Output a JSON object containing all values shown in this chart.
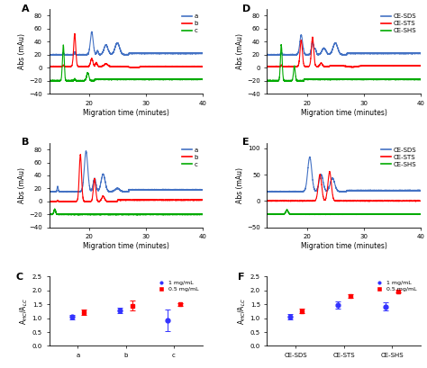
{
  "panel_A": {
    "label": "A",
    "legend": [
      "a",
      "b",
      "c"
    ],
    "colors": [
      "#4472C4",
      "#FF0000",
      "#00AA00"
    ],
    "xlabel": "Migration time (minutes)",
    "ylabel": "Abs (mAu)",
    "xlim": [
      13,
      40
    ],
    "ylim": [
      -40,
      90
    ],
    "yticks": [
      -40,
      -20,
      0,
      20,
      40,
      60,
      80
    ],
    "xticks": [
      20,
      30,
      40
    ]
  },
  "panel_B": {
    "label": "B",
    "legend": [
      "a",
      "b",
      "c"
    ],
    "colors": [
      "#4472C4",
      "#FF0000",
      "#00AA00"
    ],
    "xlabel": "Migration time (minutes)",
    "ylabel": "Abs (mAu)",
    "xlim": [
      13,
      40
    ],
    "ylim": [
      -40,
      90
    ],
    "yticks": [
      -40,
      -20,
      0,
      20,
      40,
      60,
      80
    ],
    "xticks": [
      20,
      30,
      40
    ]
  },
  "panel_D": {
    "label": "D",
    "legend": [
      "CE-SDS",
      "CE-STS",
      "CE-SHS"
    ],
    "colors": [
      "#4472C4",
      "#FF0000",
      "#00AA00"
    ],
    "xlabel": "Migration time (minutes)",
    "ylabel": "Abs (mAu)",
    "xlim": [
      13,
      40
    ],
    "ylim": [
      -40,
      90
    ],
    "yticks": [
      -40,
      -20,
      0,
      20,
      40,
      60,
      80
    ],
    "xticks": [
      20,
      30,
      40
    ]
  },
  "panel_E": {
    "label": "E",
    "legend": [
      "CE-SDS",
      "CE-STS",
      "CE-SHS"
    ],
    "colors": [
      "#4472C4",
      "#FF0000",
      "#00AA00"
    ],
    "xlabel": "Migration time (minutes)",
    "ylabel": "Abs (mAu)",
    "xlim": [
      13,
      40
    ],
    "ylim": [
      -50,
      110
    ],
    "yticks": [
      -50,
      0,
      50,
      100
    ],
    "xticks": [
      20,
      30,
      40
    ]
  },
  "panel_C": {
    "label": "C",
    "categories": [
      "a",
      "b",
      "c"
    ],
    "blue_mean": [
      1.05,
      1.28,
      0.93
    ],
    "blue_err": [
      0.08,
      0.1,
      0.38
    ],
    "red_mean": [
      1.22,
      1.45,
      1.5
    ],
    "red_err": [
      0.1,
      0.18,
      0.05
    ],
    "ylabel": "A$_{HC}$/A$_{LC}$",
    "ylim": [
      0.0,
      2.5
    ],
    "yticks": [
      0.0,
      0.5,
      1.0,
      1.5,
      2.0,
      2.5
    ],
    "legend_blue": "1 mg/mL",
    "legend_red": "0.5 mg/mL",
    "blue_color": "#3333FF",
    "red_color": "#FF0000"
  },
  "panel_F": {
    "label": "F",
    "categories": [
      "CE-SDS",
      "CE-STS",
      "CE-SHS"
    ],
    "blue_mean": [
      1.05,
      1.48,
      1.42
    ],
    "blue_err": [
      0.1,
      0.12,
      0.15
    ],
    "red_mean": [
      1.25,
      1.8,
      1.97
    ],
    "red_err": [
      0.08,
      0.05,
      0.05
    ],
    "ylabel": "A$_{HC}$/A$_{LC}$",
    "ylim": [
      0.0,
      2.5
    ],
    "yticks": [
      0.0,
      0.5,
      1.0,
      1.5,
      2.0,
      2.5
    ],
    "legend_blue": "1 mg/mL",
    "legend_red": "0.5 mg/mL",
    "blue_color": "#3333FF",
    "red_color": "#FF0000"
  },
  "bg_color": "#FFFFFF",
  "line_width": 0.8
}
